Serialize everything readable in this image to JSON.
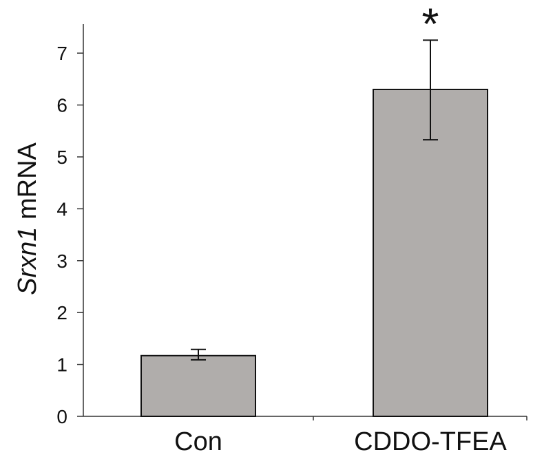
{
  "chart_data": {
    "type": "bar",
    "categories": [
      "Con",
      "CDDO-TFEA"
    ],
    "values": [
      1.17,
      6.3
    ],
    "errors": [
      {
        "low": 1.09,
        "high": 1.29
      },
      {
        "low": 5.33,
        "high": 7.25
      }
    ],
    "significance": [
      "",
      "*"
    ],
    "ylabel_italic": "Srxn1",
    "ylabel_rest": " mRNA",
    "ylim": [
      0,
      7.6
    ],
    "yticks": [
      0,
      1,
      2,
      3,
      4,
      5,
      6,
      7
    ],
    "bar_color": "#b0adab",
    "grid": false,
    "legend": "none"
  }
}
